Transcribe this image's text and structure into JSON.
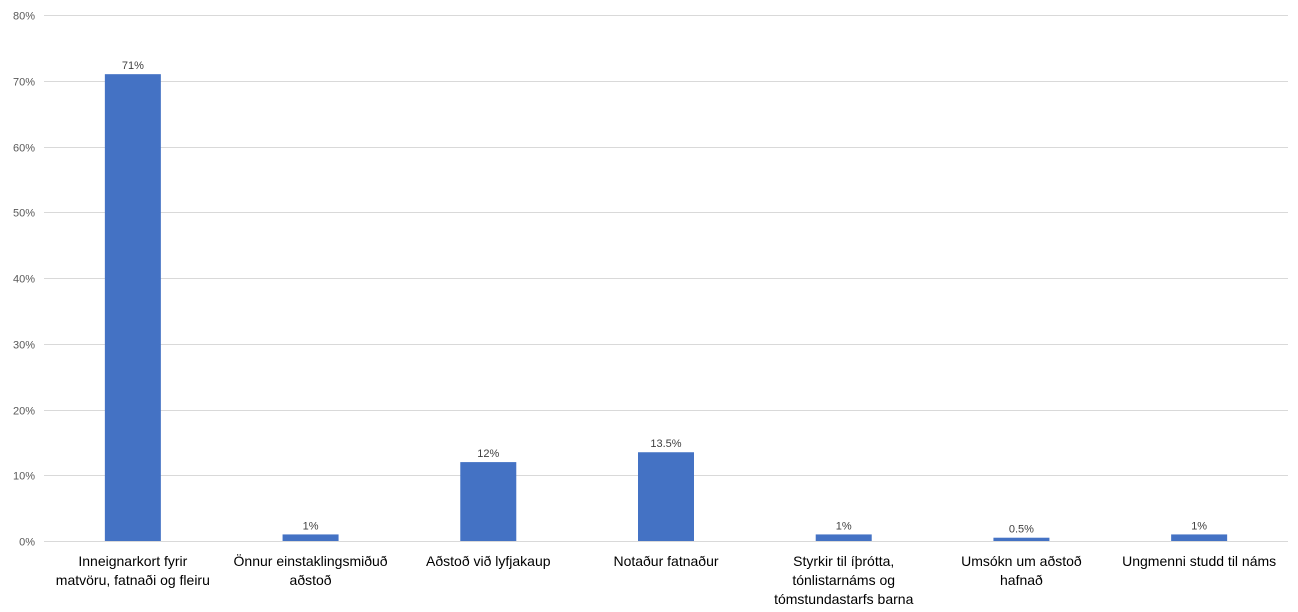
{
  "chart_data": {
    "type": "bar",
    "categories": [
      [
        "Inneignarkort fyrir",
        "matvöru, fatnaði og fleiru"
      ],
      [
        "Önnur einstaklingsmiðuð",
        "aðstoð"
      ],
      [
        "Aðstoð við lyfjakaup"
      ],
      [
        "Notaður fatnaður"
      ],
      [
        "Styrkir til íþrótta,",
        "tónlistarnáms og",
        "tómstundastarfs barna"
      ],
      [
        "Umsókn um aðstoð",
        "hafnað"
      ],
      [
        "Ungmenni studd til náms"
      ]
    ],
    "values": [
      71,
      1,
      12,
      13.5,
      1,
      0.5,
      1
    ],
    "data_labels": [
      "71%",
      "1%",
      "12%",
      "13.5%",
      "1%",
      "0.5%",
      "1%"
    ],
    "y_ticks": [
      "0%",
      "10%",
      "20%",
      "30%",
      "40%",
      "50%",
      "60%",
      "70%",
      "80%"
    ],
    "ylim": [
      0,
      80
    ],
    "title": "",
    "xlabel": "",
    "ylabel": "",
    "grid": true,
    "legend": "none",
    "bar_color": "#4472c4",
    "grid_color": "#d9d9d9"
  }
}
